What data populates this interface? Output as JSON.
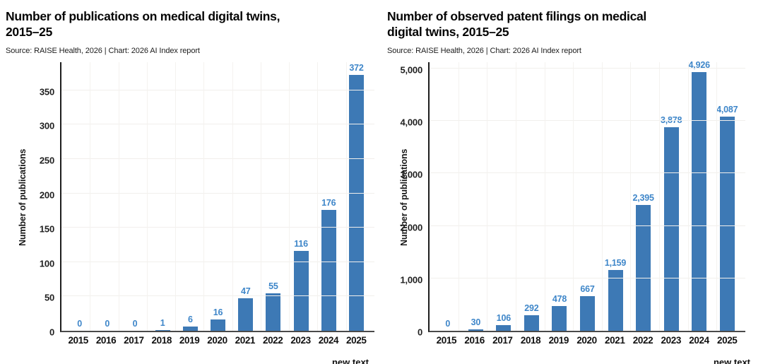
{
  "colors": {
    "background": "#ffffff",
    "bar": "#3d79b5",
    "value_label": "#3e86c9",
    "y_axis_line": "#1d1d1d",
    "x_axis_line": "#4a4a4a",
    "gridline": "#f1efec",
    "title_text": "#050505"
  },
  "chart_data": [
    {
      "type": "bar",
      "title": "Number of publications on medical digital twins, 2015–25",
      "title_line1": "Number of publications on medical digital twins,",
      "title_line2": "2015–25",
      "source": "Source: RAISE Health, 2026 | Chart: 2026 AI Index report",
      "ylabel": "Number of publications",
      "xlabel": "",
      "categories": [
        "2015",
        "2016",
        "2017",
        "2018",
        "2019",
        "2020",
        "2021",
        "2022",
        "2023",
        "2024",
        "2025"
      ],
      "values": [
        0,
        0,
        0,
        1,
        6,
        16,
        47,
        55,
        116,
        176,
        372
      ],
      "value_labels": [
        "0",
        "0",
        "0",
        "1",
        "6",
        "16",
        "47",
        "55",
        "116",
        "176",
        "372"
      ],
      "yticks": [
        0,
        50,
        100,
        150,
        200,
        250,
        300,
        350
      ],
      "ytick_labels": [
        "0",
        "50",
        "100",
        "150",
        "200",
        "250",
        "300",
        "350"
      ],
      "ylim": [
        0,
        391
      ],
      "grid": true,
      "legend": "none",
      "cutoff_text": "new text"
    },
    {
      "type": "bar",
      "title": "Number of observed patent filings on medical digital twins, 2015–25",
      "title_line1": "Number of observed patent filings on medical",
      "title_line2": "digital twins, 2015–25",
      "source": "Source: RAISE Health, 2026 | Chart: 2026 AI Index report",
      "ylabel": "Number of publications",
      "xlabel": "",
      "categories": [
        "2015",
        "2016",
        "2017",
        "2018",
        "2019",
        "2020",
        "2021",
        "2022",
        "2023",
        "2024",
        "2025"
      ],
      "values": [
        0,
        30,
        106,
        292,
        478,
        667,
        1159,
        2395,
        3878,
        4926,
        4087
      ],
      "value_labels": [
        "0",
        "30",
        "106",
        "292",
        "478",
        "667",
        "1,159",
        "2,395",
        "3,878",
        "4,926",
        "4,087"
      ],
      "yticks": [
        0,
        1000,
        2000,
        3000,
        4000,
        5000
      ],
      "ytick_labels": [
        "0",
        "1,000",
        "2,000",
        "3,000",
        "4,000",
        "5,000"
      ],
      "ylim": [
        0,
        5120
      ],
      "grid": true,
      "legend": "none",
      "cutoff_text": "new text"
    }
  ]
}
